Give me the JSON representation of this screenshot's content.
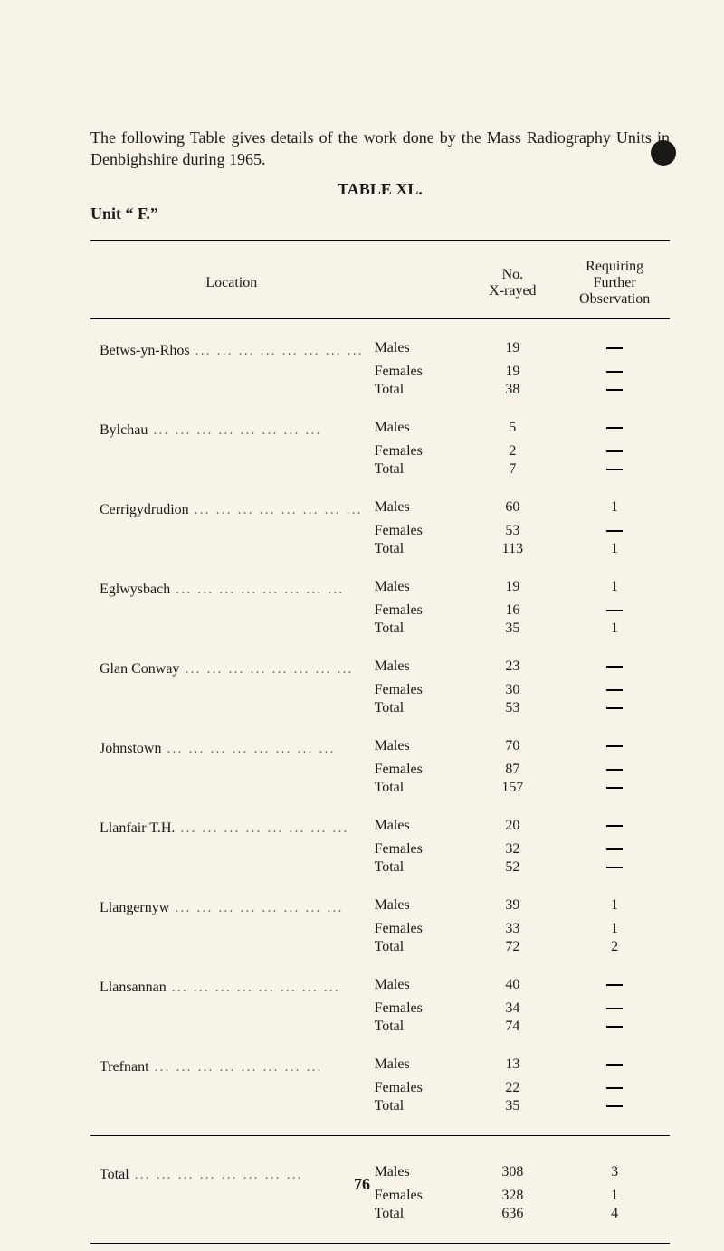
{
  "intro": "The following Table gives details of the work done by the Mass Radiography Units in Denbighshire during 1965.",
  "table_title": "TABLE XL.",
  "unit_line": "Unit “ F.”",
  "headers": {
    "location": "Location",
    "xrayed": "No. X-rayed",
    "requiring": "Requiring Further Observation"
  },
  "sex_labels": {
    "m": "Males",
    "f": "Females",
    "t": "Total"
  },
  "dash": "—",
  "dots": "... ... ... ... ... ... ... ...",
  "page_number": "76",
  "locations": [
    {
      "name": "Betws-yn-Rhos",
      "m_x": "19",
      "m_r": "—",
      "f_x": "19",
      "f_r": "—",
      "t_x": "38",
      "t_r": "—"
    },
    {
      "name": "Bylchau",
      "m_x": "5",
      "m_r": "—",
      "f_x": "2",
      "f_r": "—",
      "t_x": "7",
      "t_r": "—"
    },
    {
      "name": "Cerrigydrudion",
      "m_x": "60",
      "m_r": "1",
      "f_x": "53",
      "f_r": "—",
      "t_x": "113",
      "t_r": "1"
    },
    {
      "name": "Eglwysbach",
      "m_x": "19",
      "m_r": "1",
      "f_x": "16",
      "f_r": "—",
      "t_x": "35",
      "t_r": "1"
    },
    {
      "name": "Glan Conway",
      "m_x": "23",
      "m_r": "—",
      "f_x": "30",
      "f_r": "—",
      "t_x": "53",
      "t_r": "—"
    },
    {
      "name": "Johnstown",
      "m_x": "70",
      "m_r": "—",
      "f_x": "87",
      "f_r": "—",
      "t_x": "157",
      "t_r": "—"
    },
    {
      "name": "Llanfair T.H.",
      "m_x": "20",
      "m_r": "—",
      "f_x": "32",
      "f_r": "—",
      "t_x": "52",
      "t_r": "—"
    },
    {
      "name": "Llangernyw",
      "m_x": "39",
      "m_r": "1",
      "f_x": "33",
      "f_r": "1",
      "t_x": "72",
      "t_r": "2"
    },
    {
      "name": "Llansannan",
      "m_x": "40",
      "m_r": "—",
      "f_x": "34",
      "f_r": "—",
      "t_x": "74",
      "t_r": "—"
    },
    {
      "name": "Trefnant",
      "m_x": "13",
      "m_r": "—",
      "f_x": "22",
      "f_r": "—",
      "t_x": "35",
      "t_r": "—"
    }
  ],
  "total": {
    "name": "Total",
    "m_x": "308",
    "m_r": "3",
    "f_x": "328",
    "f_r": "1",
    "t_x": "636",
    "t_r": "4"
  }
}
